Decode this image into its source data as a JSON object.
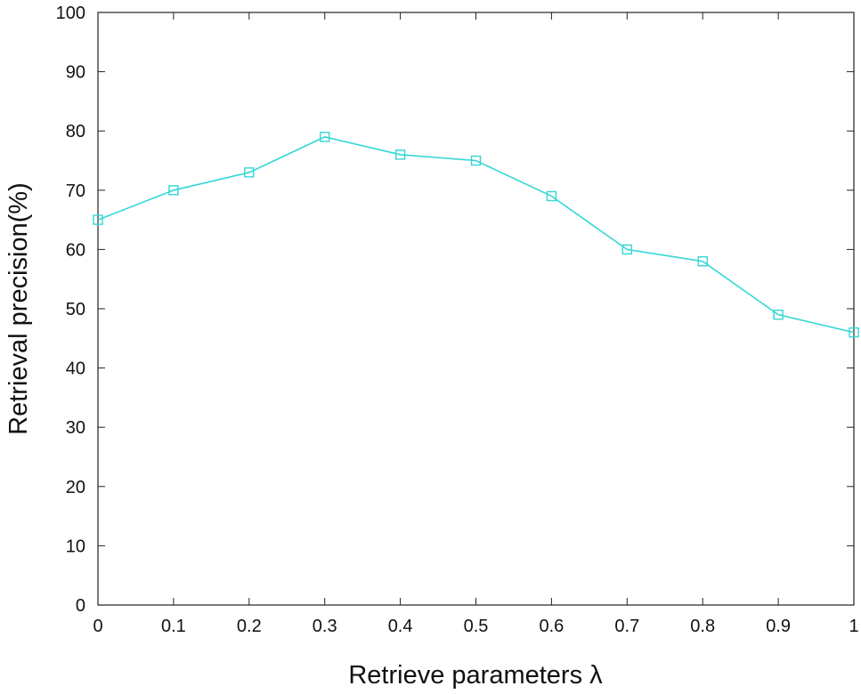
{
  "chart_data": {
    "type": "line",
    "title": "",
    "xlabel": "Retrieve parameters λ",
    "ylabel": "Retrieval precision(%)",
    "x": [
      0,
      0.1,
      0.2,
      0.3,
      0.4,
      0.5,
      0.6,
      0.7,
      0.8,
      0.9,
      1
    ],
    "series": [
      {
        "values": [
          65,
          70,
          73,
          79,
          76,
          75,
          69,
          60,
          58,
          49,
          46
        ],
        "color": "#33d6d6",
        "marker": "square"
      }
    ],
    "xlim": [
      0,
      1
    ],
    "ylim": [
      0,
      100
    ],
    "xticks": [
      "0",
      "0.1",
      "0.2",
      "0.3",
      "0.4",
      "0.5",
      "0.6",
      "0.7",
      "0.8",
      "0.9",
      "1"
    ],
    "yticks": [
      "0",
      "10",
      "20",
      "30",
      "40",
      "50",
      "60",
      "70",
      "80",
      "90",
      "100"
    ],
    "grid": false,
    "legend": "none"
  }
}
